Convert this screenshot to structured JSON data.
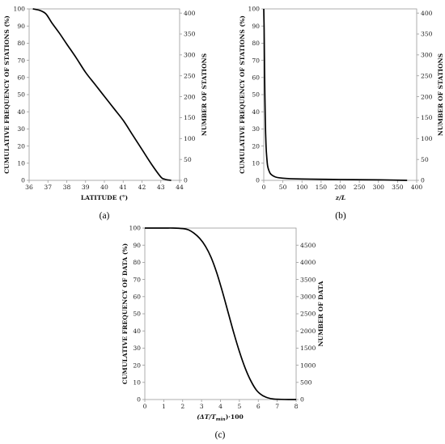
{
  "chart_data": [
    {
      "panel": "(a)",
      "type": "line",
      "xlabel": "LATITUDE (°)",
      "ylabel": "CUMULATIVE FREQUENCY OF STATIONS (%)",
      "y2label": "NUMBER OF STATIONS",
      "xlim": [
        36,
        44
      ],
      "ylim": [
        0,
        100
      ],
      "y2lim": [
        0,
        410
      ],
      "xticks": [
        "36",
        "37",
        "38",
        "39",
        "40",
        "41",
        "42",
        "43",
        "44"
      ],
      "yticks": [
        "0",
        "10",
        "20",
        "30",
        "40",
        "50",
        "60",
        "70",
        "80",
        "90",
        "100"
      ],
      "y2ticks": [
        "0",
        "50",
        "100",
        "150",
        "200",
        "250",
        "300",
        "350",
        "400"
      ],
      "grid": false,
      "x": [
        36.2,
        36.6,
        36.9,
        37.2,
        37.6,
        38.0,
        38.5,
        39.0,
        39.5,
        40.0,
        40.5,
        41.0,
        41.5,
        42.0,
        42.5,
        43.0,
        43.2,
        43.4,
        43.55
      ],
      "values": [
        100,
        99,
        97,
        92,
        86,
        79.5,
        71.5,
        63,
        56,
        49,
        42,
        35,
        26.5,
        18,
        9.5,
        2,
        0.7,
        0.2,
        0
      ]
    },
    {
      "panel": "(b)",
      "type": "line",
      "xlabel": "z/L",
      "ylabel": "CUMULATIVE FREQUENCY OF STATIONS (%)",
      "y2label": "NUMBER OF STATIONS",
      "xlim": [
        0,
        400
      ],
      "ylim": [
        0,
        100
      ],
      "y2lim": [
        0,
        410
      ],
      "xticks": [
        "0",
        "50",
        "100",
        "150",
        "200",
        "250",
        "300",
        "350",
        "400"
      ],
      "yticks": [
        "0",
        "10",
        "20",
        "30",
        "40",
        "50",
        "60",
        "70",
        "80",
        "90",
        "100"
      ],
      "y2ticks": [
        "0",
        "50",
        "100",
        "150",
        "200",
        "250",
        "300",
        "350",
        "400"
      ],
      "grid": false,
      "x": [
        0,
        1,
        2,
        4,
        6,
        8,
        10,
        13,
        17,
        22,
        30,
        40,
        60,
        100,
        200,
        300,
        375
      ],
      "values": [
        100,
        88,
        65,
        35,
        20,
        13,
        8.5,
        6,
        4,
        3,
        2,
        1.5,
        1.1,
        0.8,
        0.5,
        0.3,
        0
      ]
    },
    {
      "panel": "(c)",
      "type": "line",
      "xlabel": "(ΔT/T",
      "xlabel_sub": "min",
      "xlabel_tail": ")·100",
      "ylabel": "CUMULATIVE FREQUENCY OF DATA (%)",
      "y2label": "NUMBER OF DATA",
      "xlim": [
        0,
        8
      ],
      "ylim": [
        0,
        100
      ],
      "y2lim": [
        0,
        5000
      ],
      "xticks": [
        "0",
        "1",
        "2",
        "3",
        "4",
        "5",
        "6",
        "7",
        "8"
      ],
      "yticks": [
        "0",
        "10",
        "20",
        "30",
        "40",
        "50",
        "60",
        "70",
        "80",
        "90",
        "100"
      ],
      "y2ticks": [
        "0",
        "500",
        "1000",
        "1500",
        "2000",
        "2500",
        "3000",
        "3500",
        "4000",
        "4500"
      ],
      "grid": false,
      "x": [
        0.0,
        1.0,
        1.5,
        2.0,
        2.3,
        2.6,
        2.9,
        3.2,
        3.5,
        3.8,
        4.1,
        4.4,
        4.7,
        5.0,
        5.3,
        5.6,
        5.9,
        6.2,
        6.5,
        6.8,
        7.2,
        7.6,
        8.0
      ],
      "values": [
        100,
        100,
        100,
        99.7,
        99,
        97,
        94,
        89.5,
        83,
        74,
        63,
        51,
        39,
        28,
        18.5,
        11,
        5.5,
        2.5,
        1,
        0.3,
        0.1,
        0,
        0
      ]
    }
  ],
  "panels": {
    "a": {
      "label": "(a)",
      "xlabel": "LATITUDE (°)",
      "ylabel": "CUMULATIVE FREQUENCY OF STATIONS (%)",
      "y2label": "NUMBER OF STATIONS"
    },
    "b": {
      "label": "(b)",
      "xlabel": "z/L",
      "ylabel": "CUMULATIVE FREQUENCY OF STATIONS (%)",
      "y2label": "NUMBER OF STATIONS"
    },
    "c": {
      "label": "(c)",
      "xlabel": "(ΔT/T",
      "xlabel_sub": "min",
      "xlabel_tail": ")·100",
      "ylabel": "CUMULATIVE FREQUENCY OF DATA (%)",
      "y2label": "NUMBER OF DATA"
    }
  }
}
